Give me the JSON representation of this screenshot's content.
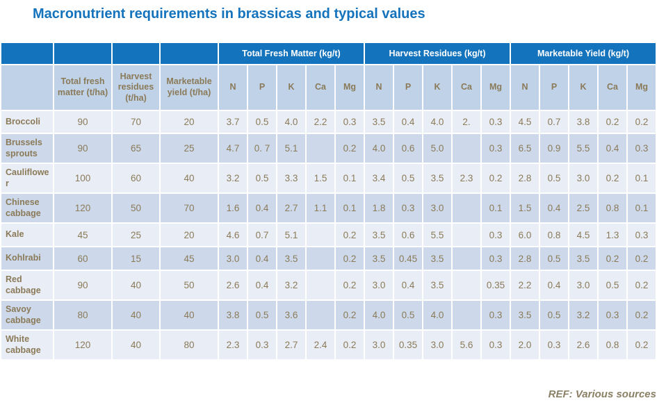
{
  "title": "Macronutrient requirements in brassicas and typical values",
  "footer": {
    "ref": "REF: Various sources"
  },
  "colors": {
    "title_blue": "#1473bd",
    "header_blue": "#1473bd",
    "header_light_blue": "#c0d2e8",
    "row_light": "#e9edf5",
    "row_dark": "#cdd9ea",
    "cell_text_brown": "#8a7a58",
    "ref_text": "#8a8066"
  },
  "table": {
    "top_header": {
      "blank_cells": 4,
      "groups": [
        {
          "label": "Total Fresh Matter (kg/t)",
          "span": 5
        },
        {
          "label": "Harvest Residues (kg/t)",
          "span": 5
        },
        {
          "label": "Marketable Yield (kg/t)",
          "span": 5
        }
      ]
    },
    "column_headers": [
      "",
      "Total fresh matter (t/ha)",
      "Harvest residues (t/ha)",
      "Marketable yield (t/ha)",
      "N",
      "P",
      "K",
      "Ca",
      "Mg",
      "N",
      "P",
      "K",
      "Ca",
      "Mg",
      "N",
      "P",
      "K",
      "Ca",
      "Mg"
    ],
    "rows": [
      {
        "crop": "Broccoli",
        "values": [
          "90",
          "70",
          "20",
          "3.7",
          "0.5",
          "4.0",
          "2.2",
          "0.3",
          "3.5",
          "0.4",
          "4.0",
          "2.",
          "0.3",
          "4.5",
          "0.7",
          "3.8",
          "0.2",
          "0.2"
        ]
      },
      {
        "crop": "Brussels sprouts",
        "values": [
          "90",
          "65",
          "25",
          "4.7",
          "0. 7",
          "5.1",
          "",
          "0.2",
          "4.0",
          "0.6",
          "5.0",
          "",
          "0.3",
          "6.5",
          "0.9",
          "5.5",
          "0.4",
          "0.3"
        ]
      },
      {
        "crop": "Cauliflower",
        "values": [
          "100",
          "60",
          "40",
          "3.2",
          "0.5",
          "3.3",
          "1.5",
          "0.1",
          "3.4",
          "0.5",
          "3.5",
          "2.3",
          "0.2",
          "2.8",
          "0.5",
          "3.0",
          "0.2",
          "0.1"
        ]
      },
      {
        "crop": "Chinese cabbage",
        "values": [
          "120",
          "50",
          "70",
          "1.6",
          "0.4",
          "2.7",
          "1.1",
          "0.1",
          "1.8",
          "0.3",
          "3.0",
          "",
          "0.1",
          "1.5",
          "0.4",
          "2.5",
          "0.8",
          "0.1"
        ]
      },
      {
        "crop": "Kale",
        "values": [
          "45",
          "25",
          "20",
          "4.6",
          "0.7",
          "5.1",
          "",
          "0.2",
          "3.5",
          "0.6",
          "5.5",
          "",
          "0.3",
          "6.0",
          "0.8",
          "4.5",
          "1.3",
          "0.3"
        ]
      },
      {
        "crop": "Kohlrabi",
        "values": [
          "60",
          "15",
          "45",
          "3.0",
          "0.4",
          "3.5",
          "",
          "0.2",
          "3.5",
          "0.45",
          "3.5",
          "",
          "0.3",
          "2.8",
          "0.5",
          "3.5",
          "0.2",
          "0.2"
        ]
      },
      {
        "crop": "Red cabbage",
        "values": [
          "90",
          "40",
          "50",
          "2.6",
          "0.4",
          "3.2",
          "",
          "0.2",
          "3.0",
          "0.4",
          "3.5",
          "",
          "0.35",
          "2.2",
          "0.4",
          "3.0",
          "0.5",
          "0.2"
        ]
      },
      {
        "crop": "Savoy cabbage",
        "values": [
          "80",
          "40",
          "40",
          "3.8",
          "0.5",
          "3.6",
          "",
          "0.2",
          "4.0",
          "0.5",
          "4.0",
          "",
          "0.3",
          "3.5",
          "0.5",
          "3.2",
          "0.3",
          "0.2"
        ]
      },
      {
        "crop": "White cabbage",
        "values": [
          "120",
          "40",
          "80",
          "2.3",
          "0.3",
          "2.7",
          "2.4",
          "0.2",
          "3.0",
          "0.35",
          "3.0",
          "5.6",
          "0.3",
          "2.0",
          "0.3",
          "2.6",
          "0.8",
          "0.2"
        ]
      }
    ]
  }
}
